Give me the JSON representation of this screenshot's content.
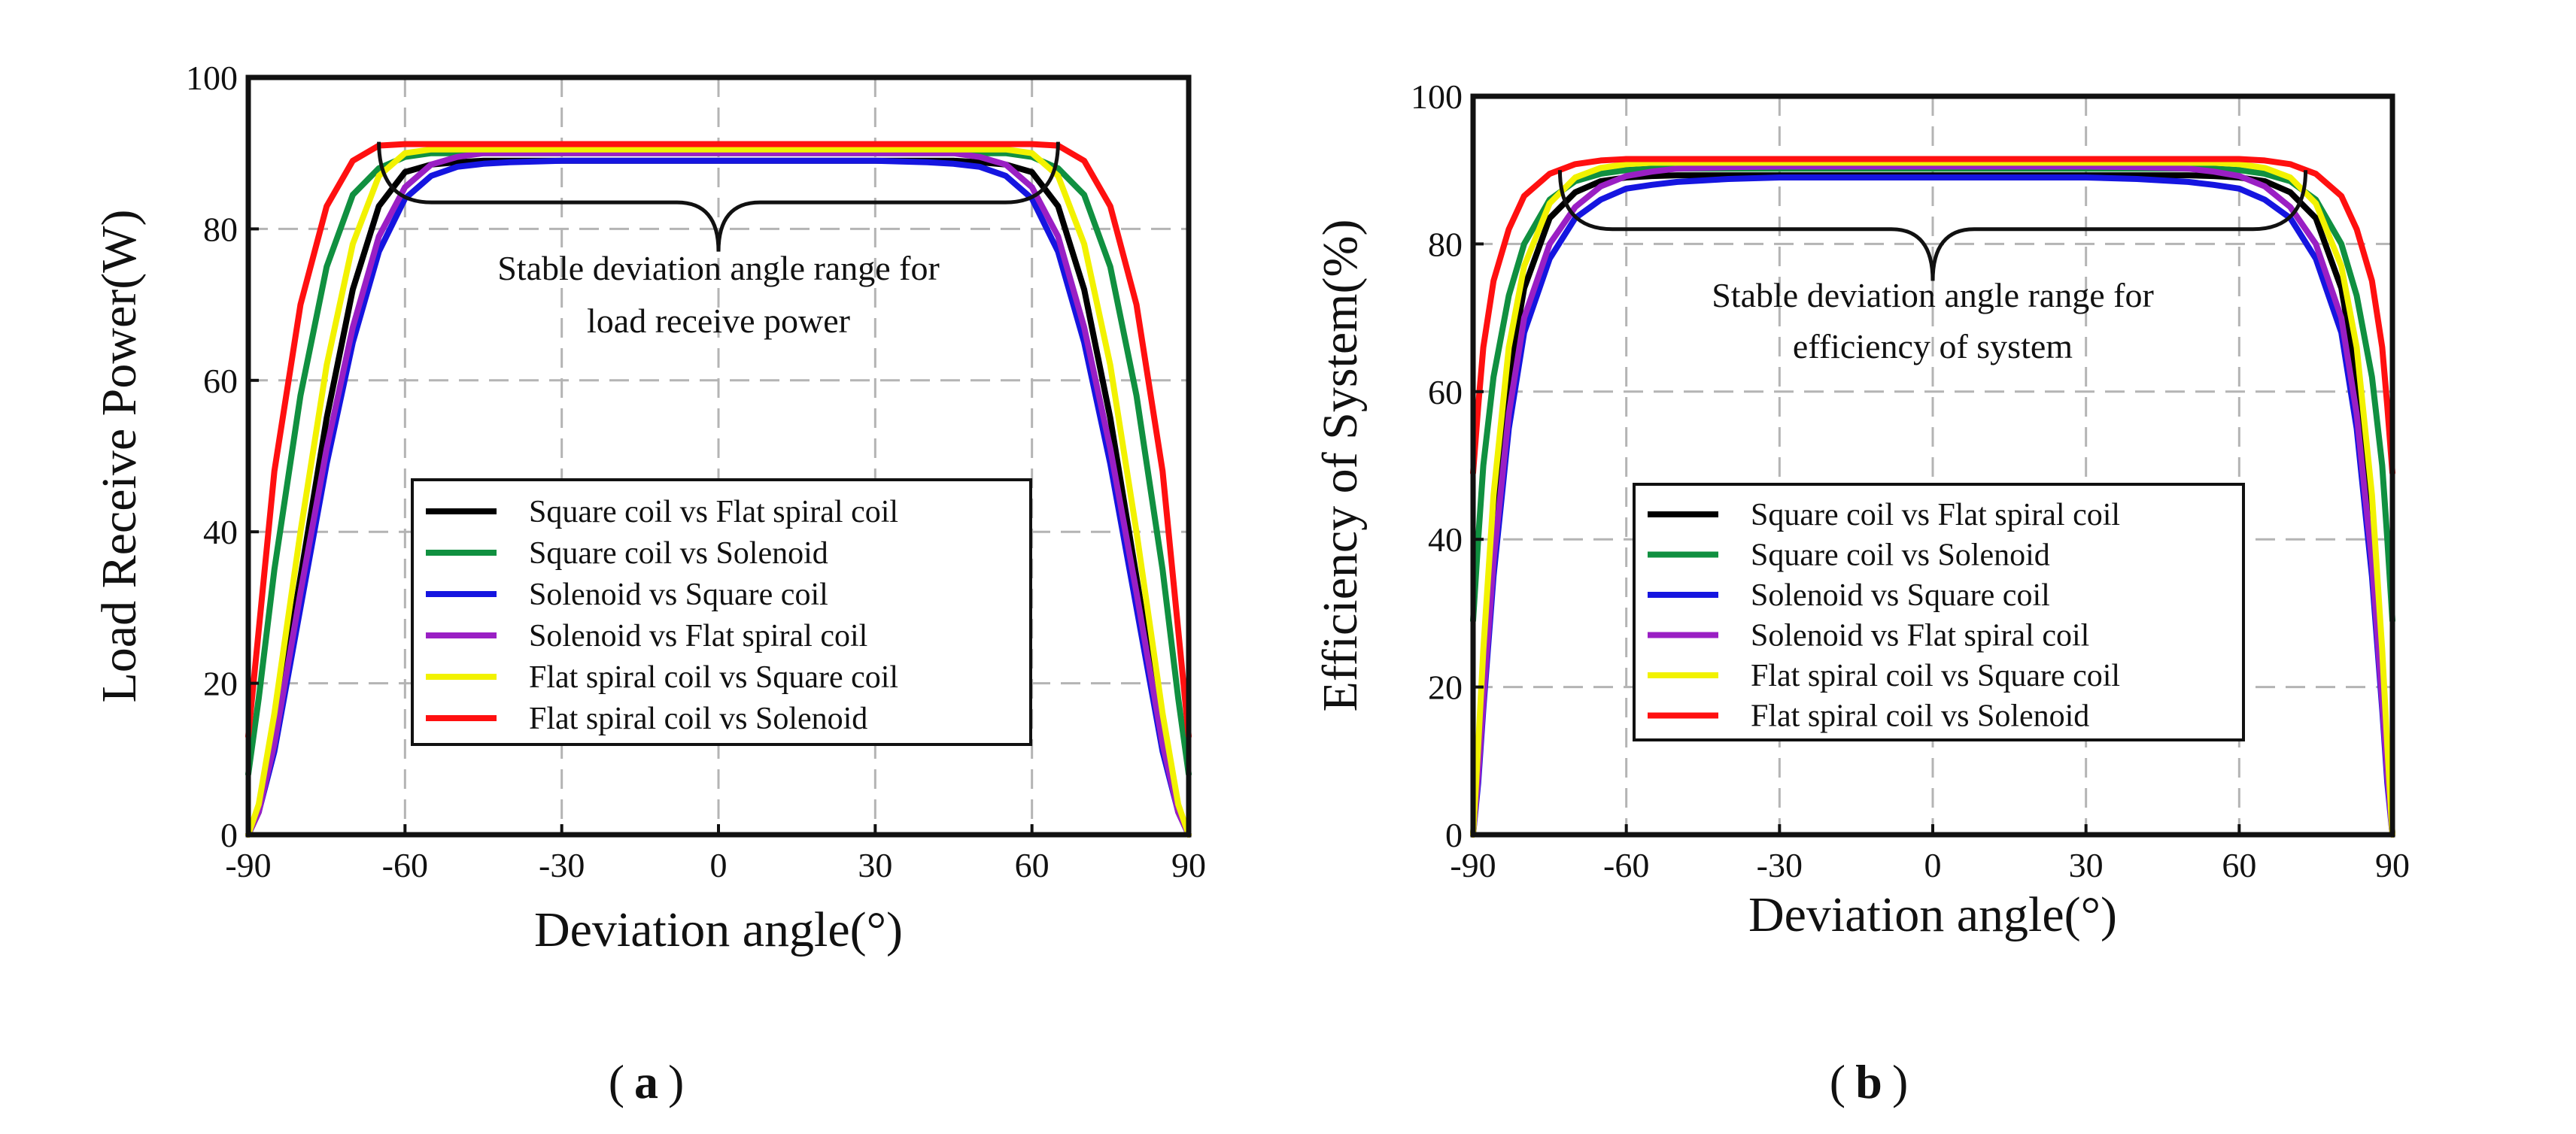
{
  "chart_data": [
    {
      "type": "line",
      "panel_label": "a",
      "xlabel": "Deviation angle(°)",
      "ylabel": "Load Receive Power(W)",
      "xlim": [
        -90,
        90
      ],
      "ylim": [
        0,
        100
      ],
      "xticks": [
        -90,
        -60,
        -30,
        0,
        30,
        60,
        90
      ],
      "yticks": [
        0,
        20,
        40,
        60,
        80,
        100
      ],
      "grid": true,
      "legend_position": "lower-center",
      "annotation": {
        "lines": [
          "Stable deviation angle range for",
          "load receive power"
        ],
        "range": [
          -65,
          65
        ],
        "brace_value": 83.5,
        "tip_value": 77
      },
      "series": [
        {
          "name": "Square coil vs Flat spiral coil",
          "color": "#000000",
          "x": [
            -90,
            -88,
            -85,
            -80,
            -75,
            -70,
            -65,
            -60,
            -55,
            -50,
            -45,
            -40,
            -30,
            -20,
            -10,
            0,
            10,
            20,
            30,
            40,
            45,
            50,
            55,
            60,
            65,
            70,
            75,
            80,
            85,
            88,
            90
          ],
          "values": [
            0,
            3,
            13,
            34,
            55,
            72,
            83,
            87.5,
            88.5,
            88.8,
            89,
            89,
            89,
            89,
            89,
            89,
            89,
            89,
            89,
            89,
            89,
            88.8,
            88.5,
            87.5,
            83,
            72,
            55,
            34,
            13,
            3,
            0
          ]
        },
        {
          "name": "Square coil vs Solenoid",
          "color": "#109040",
          "x": [
            -90,
            -88,
            -85,
            -80,
            -75,
            -70,
            -65,
            -60,
            -55,
            -50,
            -45,
            -40,
            -30,
            -20,
            -10,
            0,
            10,
            20,
            30,
            40,
            45,
            50,
            55,
            60,
            65,
            70,
            75,
            80,
            85,
            88,
            90
          ],
          "values": [
            8,
            18,
            35,
            58,
            75,
            84.5,
            88,
            89.5,
            90,
            90,
            90,
            90,
            90,
            90,
            90,
            90,
            90,
            90,
            90,
            90,
            90,
            90,
            90,
            89.5,
            88,
            84.5,
            75,
            58,
            35,
            18,
            8
          ]
        },
        {
          "name": "Solenoid vs Square coil",
          "color": "#1515e0",
          "x": [
            -90,
            -88,
            -85,
            -80,
            -75,
            -70,
            -65,
            -60,
            -55,
            -50,
            -45,
            -40,
            -30,
            -20,
            -10,
            0,
            10,
            20,
            30,
            40,
            45,
            50,
            55,
            60,
            65,
            70,
            75,
            80,
            85,
            88,
            90
          ],
          "values": [
            0,
            3,
            11,
            30,
            49,
            65,
            77,
            84,
            87,
            88.2,
            88.6,
            88.8,
            89,
            89,
            89,
            89,
            89,
            89,
            89,
            88.8,
            88.6,
            88.2,
            87,
            84,
            77,
            65,
            49,
            30,
            11,
            3,
            0
          ]
        },
        {
          "name": "Solenoid vs Flat spiral coil",
          "color": "#9a1fc4",
          "x": [
            -90,
            -88,
            -85,
            -80,
            -75,
            -70,
            -65,
            -60,
            -55,
            -50,
            -45,
            -40,
            -30,
            -20,
            -10,
            0,
            10,
            20,
            30,
            40,
            45,
            50,
            55,
            60,
            65,
            70,
            75,
            80,
            85,
            88,
            90
          ],
          "values": [
            0,
            3,
            12,
            32,
            51,
            67,
            79,
            85.5,
            88.5,
            89.5,
            90,
            90,
            90,
            90,
            90,
            90,
            90,
            90,
            90,
            90,
            90,
            89.5,
            88.5,
            85.5,
            79,
            67,
            51,
            32,
            12,
            3,
            0
          ]
        },
        {
          "name": "Flat spiral coil vs Square coil",
          "color": "#f2f200",
          "x": [
            -90,
            -88,
            -85,
            -80,
            -75,
            -70,
            -65,
            -60,
            -55,
            -50,
            -45,
            -40,
            -30,
            -20,
            -10,
            0,
            10,
            20,
            30,
            40,
            45,
            50,
            55,
            60,
            65,
            70,
            75,
            80,
            85,
            88,
            90
          ],
          "values": [
            0,
            4,
            16,
            40,
            62,
            78,
            87,
            90,
            90.5,
            90.5,
            90.5,
            90.5,
            90.5,
            90.5,
            90.5,
            90.5,
            90.5,
            90.5,
            90.5,
            90.5,
            90.5,
            90.5,
            90.5,
            90,
            87,
            78,
            62,
            40,
            16,
            4,
            0
          ]
        },
        {
          "name": "Flat spiral coil vs Solenoid",
          "color": "#ff1010",
          "x": [
            -90,
            -88,
            -85,
            -80,
            -75,
            -70,
            -65,
            -60,
            -55,
            -50,
            -45,
            -40,
            -30,
            -20,
            -10,
            0,
            10,
            20,
            30,
            40,
            45,
            50,
            55,
            60,
            65,
            70,
            75,
            80,
            85,
            88,
            90
          ],
          "values": [
            13,
            27,
            48,
            70,
            83,
            89,
            91,
            91.2,
            91.2,
            91.2,
            91.2,
            91.2,
            91.2,
            91.2,
            91.2,
            91.2,
            91.2,
            91.2,
            91.2,
            91.2,
            91.2,
            91.2,
            91.2,
            91.2,
            91,
            89,
            83,
            70,
            48,
            27,
            13
          ]
        }
      ]
    },
    {
      "type": "line",
      "panel_label": "b",
      "xlabel": "Deviation angle(°)",
      "ylabel": "Efficiency of System(%)",
      "xlim": [
        -90,
        90
      ],
      "ylim": [
        0,
        100
      ],
      "xticks": [
        -90,
        -60,
        -30,
        0,
        30,
        60,
        90
      ],
      "yticks": [
        0,
        20,
        40,
        60,
        80,
        100
      ],
      "grid": true,
      "legend_position": "lower-center",
      "annotation": {
        "lines": [
          "Stable deviation angle range for",
          "efficiency of system"
        ],
        "range": [
          -73,
          73
        ],
        "brace_value": 82,
        "tip_value": 75
      },
      "series": [
        {
          "name": "Square coil vs Flat spiral coil",
          "color": "#000000",
          "x": [
            -90,
            -89,
            -88,
            -86,
            -83,
            -80,
            -75,
            -70,
            -65,
            -60,
            -55,
            -50,
            -40,
            -30,
            -20,
            -10,
            0,
            10,
            20,
            30,
            40,
            50,
            55,
            60,
            65,
            70,
            75,
            80,
            83,
            86,
            88,
            89,
            90
          ],
          "values": [
            0,
            10,
            22,
            42,
            62,
            74,
            83.5,
            87,
            88.5,
            89,
            89.2,
            89.3,
            89.3,
            89.3,
            89.3,
            89.3,
            89.3,
            89.3,
            89.3,
            89.3,
            89.3,
            89.3,
            89.2,
            89,
            88.5,
            87,
            83.5,
            74,
            62,
            42,
            22,
            10,
            0
          ]
        },
        {
          "name": "Square coil vs Solenoid",
          "color": "#109040",
          "x": [
            -90,
            -89,
            -88,
            -86,
            -83,
            -80,
            -75,
            -70,
            -65,
            -60,
            -55,
            -50,
            -40,
            -30,
            -20,
            -10,
            0,
            10,
            20,
            30,
            40,
            50,
            55,
            60,
            65,
            70,
            75,
            80,
            83,
            86,
            88,
            89,
            90
          ],
          "values": [
            29,
            40,
            50,
            62,
            73,
            80,
            86,
            88.5,
            89.5,
            90,
            90.2,
            90.2,
            90.2,
            90.2,
            90.2,
            90.2,
            90.2,
            90.2,
            90.2,
            90.2,
            90.2,
            90.2,
            90.2,
            90,
            89.5,
            88.5,
            86,
            80,
            73,
            62,
            50,
            40,
            29
          ]
        },
        {
          "name": "Solenoid vs Square coil",
          "color": "#1515e0",
          "x": [
            -90,
            -89,
            -88,
            -86,
            -83,
            -80,
            -75,
            -70,
            -65,
            -60,
            -55,
            -50,
            -40,
            -30,
            -20,
            -10,
            0,
            10,
            20,
            30,
            40,
            50,
            55,
            60,
            65,
            70,
            75,
            80,
            83,
            86,
            88,
            89,
            90
          ],
          "values": [
            0,
            7,
            17,
            35,
            55,
            68,
            78,
            83.5,
            86,
            87.5,
            88,
            88.4,
            88.8,
            89,
            89,
            89,
            89,
            89,
            89,
            89,
            88.8,
            88.4,
            88,
            87.5,
            86,
            83.5,
            78,
            68,
            55,
            35,
            17,
            7,
            0
          ]
        },
        {
          "name": "Solenoid vs Flat spiral coil",
          "color": "#9a1fc4",
          "x": [
            -90,
            -89,
            -88,
            -86,
            -83,
            -80,
            -75,
            -70,
            -65,
            -60,
            -55,
            -50,
            -40,
            -30,
            -20,
            -10,
            0,
            10,
            20,
            30,
            40,
            50,
            55,
            60,
            65,
            70,
            75,
            80,
            83,
            86,
            88,
            89,
            90
          ],
          "values": [
            0,
            8,
            18,
            37,
            57,
            70,
            80,
            85,
            87.8,
            89.2,
            89.8,
            90.2,
            90.4,
            90.5,
            90.5,
            90.5,
            90.5,
            90.5,
            90.5,
            90.5,
            90.4,
            90.2,
            89.8,
            89.2,
            87.8,
            85,
            80,
            70,
            57,
            37,
            18,
            8,
            0
          ]
        },
        {
          "name": "Flat spiral coil vs Square coil",
          "color": "#f2f200",
          "x": [
            -90,
            -89,
            -88,
            -86,
            -83,
            -80,
            -75,
            -70,
            -65,
            -60,
            -55,
            -50,
            -40,
            -30,
            -20,
            -10,
            0,
            10,
            20,
            30,
            40,
            50,
            55,
            60,
            65,
            70,
            75,
            80,
            83,
            86,
            88,
            89,
            90
          ],
          "values": [
            0,
            12,
            25,
            46,
            66,
            77,
            85.5,
            89,
            90.3,
            90.8,
            91,
            91,
            91,
            91,
            91,
            91,
            91,
            91,
            91,
            91,
            91,
            91,
            91,
            90.8,
            90.3,
            89,
            85.5,
            77,
            66,
            46,
            25,
            12,
            0
          ]
        },
        {
          "name": "Flat spiral coil vs Solenoid",
          "color": "#ff1010",
          "x": [
            -90,
            -89,
            -88,
            -86,
            -83,
            -80,
            -75,
            -70,
            -65,
            -60,
            -55,
            -50,
            -40,
            -30,
            -20,
            -10,
            0,
            10,
            20,
            30,
            40,
            50,
            55,
            60,
            65,
            70,
            75,
            80,
            83,
            86,
            88,
            89,
            90
          ],
          "values": [
            49,
            58,
            66,
            75,
            82,
            86.5,
            89.5,
            90.8,
            91.3,
            91.5,
            91.5,
            91.5,
            91.5,
            91.5,
            91.5,
            91.5,
            91.5,
            91.5,
            91.5,
            91.5,
            91.5,
            91.5,
            91.5,
            91.5,
            91.3,
            90.8,
            89.5,
            86.5,
            82,
            75,
            66,
            58,
            49
          ]
        }
      ]
    }
  ]
}
